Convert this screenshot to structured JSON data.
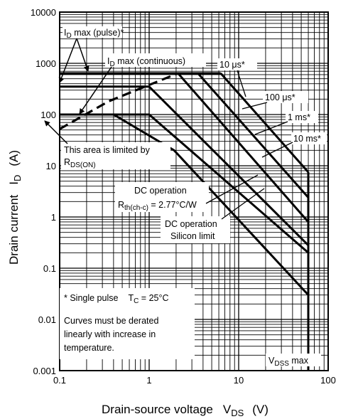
{
  "chart_data": {
    "type": "line",
    "x_scale": "log",
    "y_scale": "log",
    "xlim": [
      0.1,
      100
    ],
    "ylim": [
      0.001,
      10000
    ],
    "xlabel": {
      "main": "Drain-source voltage",
      "sym": "V",
      "sub": "DS",
      "unit": "(V)"
    },
    "ylabel": {
      "main": "Drain current",
      "sym": "I",
      "sub": "D",
      "unit": "(A)"
    },
    "x_ticks": [
      {
        "value": 0.1,
        "label": "0.1"
      },
      {
        "value": 1,
        "label": "1"
      },
      {
        "value": 10,
        "label": "10"
      },
      {
        "value": 100,
        "label": "100"
      }
    ],
    "y_ticks": [
      {
        "value": 10000,
        "label": "10000"
      },
      {
        "value": 1000,
        "label": "1000"
      },
      {
        "value": 100,
        "label": "100"
      },
      {
        "value": 10,
        "label": "10"
      },
      {
        "value": 1,
        "label": "1"
      },
      {
        "value": 0.1,
        "label": "0.1"
      },
      {
        "value": 0.01,
        "label": "0.01"
      },
      {
        "value": 0.001,
        "label": "0.001"
      }
    ],
    "grid": true,
    "series": [
      {
        "name": "I_D max (pulse)*",
        "style": "solid",
        "points": [
          [
            0.1,
            640
          ],
          [
            6.3,
            640
          ]
        ]
      },
      {
        "name": "I_D max (continuous)",
        "style": "solid",
        "points": [
          [
            0.1,
            350
          ],
          [
            1,
            350
          ]
        ]
      },
      {
        "name": "R_DS(ON) limit",
        "style": "dashed",
        "points": [
          [
            0.1,
            52
          ],
          [
            0.35,
            180
          ],
          [
            2.1,
            640
          ]
        ]
      },
      {
        "name": "10 μs*",
        "style": "solid",
        "points": [
          [
            6.3,
            640
          ],
          [
            60,
            7.5
          ]
        ]
      },
      {
        "name": "100 μs*",
        "style": "solid",
        "points": [
          [
            3.5,
            640
          ],
          [
            60,
            2.4
          ]
        ]
      },
      {
        "name": "1 ms*",
        "style": "solid",
        "points": [
          [
            2.1,
            640
          ],
          [
            60,
            0.8
          ]
        ]
      },
      {
        "name": "10 ms*",
        "style": "solid",
        "points": [
          [
            1,
            350
          ],
          [
            60,
            0.28
          ]
        ]
      },
      {
        "name": "DC operation R_th(ch-c) = 2.77°C/W",
        "style": "solid",
        "points": [
          [
            0.1,
            100
          ],
          [
            1,
            100
          ],
          [
            60,
            0.2
          ]
        ]
      },
      {
        "name": "DC operation Silicon limit",
        "style": "solid",
        "points": [
          [
            0.1,
            100
          ],
          [
            0.4,
            100
          ],
          [
            1.9,
            20
          ],
          [
            60,
            0.03
          ]
        ]
      },
      {
        "name": "V_DSS max",
        "style": "solid",
        "points": [
          [
            60,
            7.5
          ],
          [
            60,
            0.001
          ]
        ]
      }
    ],
    "annotations": {
      "id_pulse": {
        "sym": "I",
        "sub": "D",
        "rest": " max (pulse)*"
      },
      "id_cont": {
        "sym": "I",
        "sub": "D",
        "rest": " max (continuous)"
      },
      "t10us": "10 μs*",
      "t100us": "100 μs*",
      "t1ms": "1 ms*",
      "t10ms": "10 ms*",
      "area_l1": "This area is limited by",
      "area_l2_sym": "R",
      "area_l2_sub": "DS(ON)",
      "dc1_l1": "DC operation",
      "dc1_l2_sym": "R",
      "dc1_l2_sub": "th(ch-c)",
      "dc1_l2_rest": " = 2.77°C/W",
      "dc2_l1": "DC operation",
      "dc2_l2": "Silicon limit",
      "vdss_sym": "V",
      "vdss_sub": "DSS",
      "vdss_rest": " max",
      "note1": "* Single pulse",
      "note1_tc_sym": "T",
      "note1_tc_sub": "C",
      "note1_tc_rest": " = 25°C",
      "note2_l1": "Curves must be derated",
      "note2_l2": "linearly with increase in",
      "note2_l3": "temperature."
    }
  }
}
